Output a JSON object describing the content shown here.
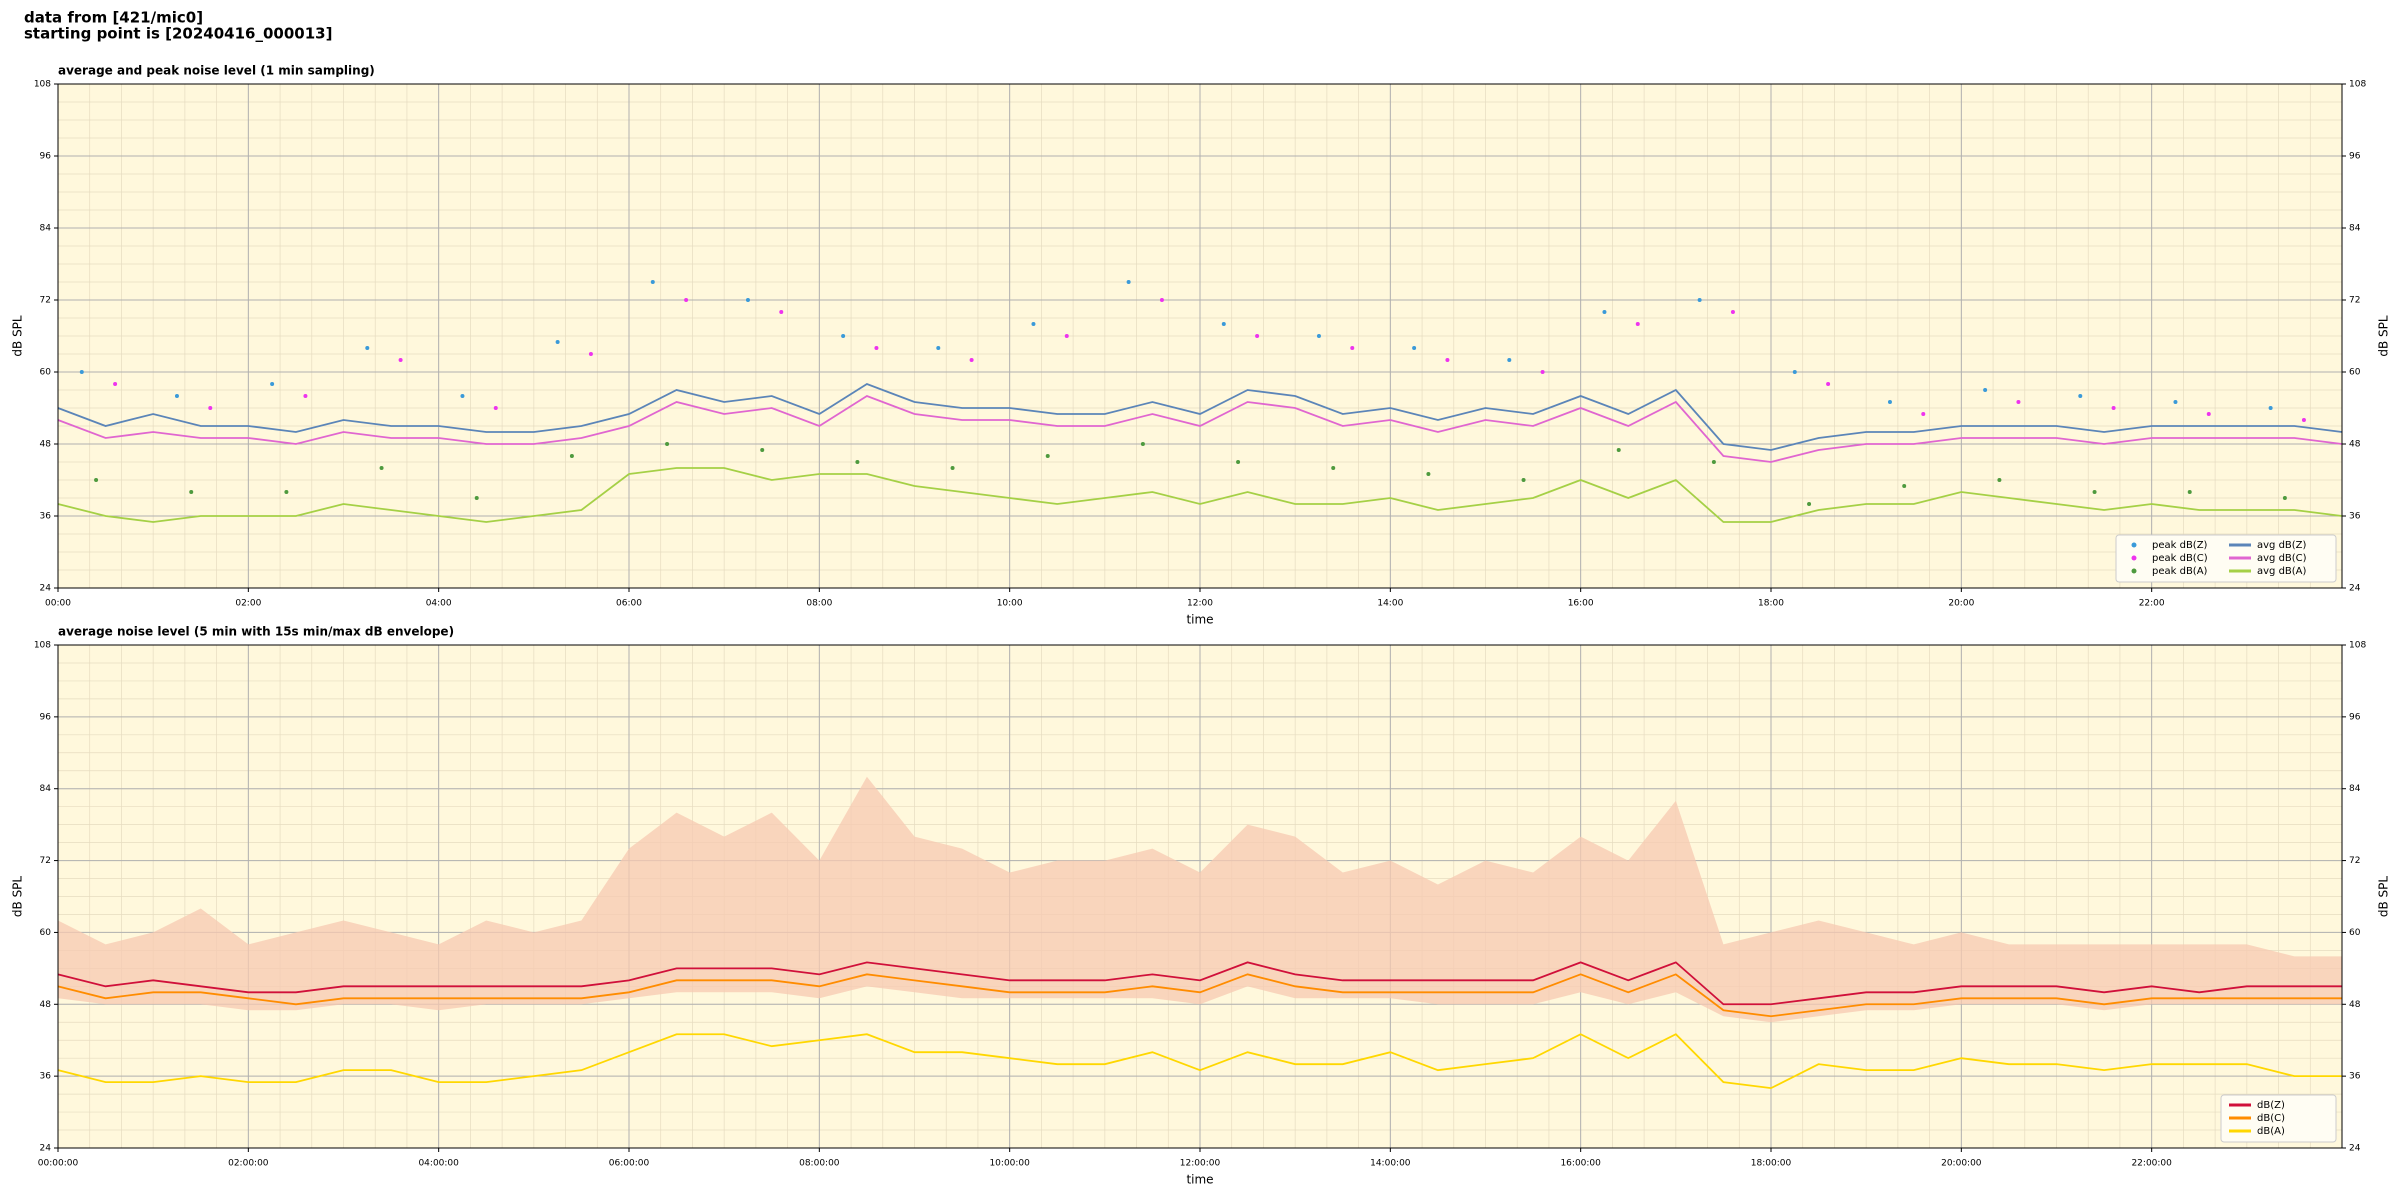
{
  "header": {
    "line1": "data from [421/mic0]",
    "line2": "starting point is [20240416_000013]"
  },
  "chart_data": [
    {
      "type": "line",
      "title": "average and peak noise level (1 min sampling)",
      "xlabel": "time",
      "ylabel": "dB SPL",
      "background": "#fff8dc",
      "grid": true,
      "legend": "lower right",
      "legend_columns": 2,
      "xlim": [
        0,
        24
      ],
      "ylim": [
        24,
        108
      ],
      "yticks": [
        24,
        36,
        48,
        60,
        72,
        84,
        96,
        108
      ],
      "xticks": [
        {
          "value": 0,
          "label": "00:00"
        },
        {
          "value": 2,
          "label": "02:00"
        },
        {
          "value": 4,
          "label": "04:00"
        },
        {
          "value": 6,
          "label": "06:00"
        },
        {
          "value": 8,
          "label": "08:00"
        },
        {
          "value": 10,
          "label": "10:00"
        },
        {
          "value": 12,
          "label": "12:00"
        },
        {
          "value": 14,
          "label": "14:00"
        },
        {
          "value": 16,
          "label": "16:00"
        },
        {
          "value": 18,
          "label": "18:00"
        },
        {
          "value": 20,
          "label": "20:00"
        },
        {
          "value": 22,
          "label": "22:00"
        }
      ],
      "x": [
        0,
        0.5,
        1,
        1.5,
        2,
        2.5,
        3,
        3.5,
        4,
        4.5,
        5,
        5.5,
        6,
        6.5,
        7,
        7.5,
        8,
        8.5,
        9,
        9.5,
        10,
        10.5,
        11,
        11.5,
        12,
        12.5,
        13,
        13.5,
        14,
        14.5,
        15,
        15.5,
        16,
        16.5,
        17,
        17.5,
        18,
        18.5,
        19,
        19.5,
        20,
        20.5,
        21,
        21.5,
        22,
        22.5,
        23,
        23.5,
        24
      ],
      "series": [
        {
          "name": "peak dB(Z)",
          "kind": "scatter",
          "color": "#3a9ad9",
          "x": [
            0.25,
            1.25,
            2.25,
            3.25,
            4.25,
            5.25,
            6.25,
            7.25,
            8.25,
            9.25,
            10.25,
            11.25,
            12.25,
            13.25,
            14.25,
            15.25,
            16.25,
            17.25,
            18.25,
            19.25,
            20.25,
            21.25,
            22.25,
            23.25
          ],
          "values": [
            60,
            56,
            58,
            64,
            56,
            65,
            75,
            72,
            66,
            64,
            68,
            75,
            68,
            66,
            64,
            62,
            70,
            72,
            60,
            55,
            57,
            56,
            55,
            54
          ]
        },
        {
          "name": "peak dB(C)",
          "kind": "scatter",
          "color": "#ee33ee",
          "x": [
            0.6,
            1.6,
            2.6,
            3.6,
            4.6,
            5.6,
            6.6,
            7.6,
            8.6,
            9.6,
            10.6,
            11.6,
            12.6,
            13.6,
            14.6,
            15.6,
            16.6,
            17.6,
            18.6,
            19.6,
            20.6,
            21.6,
            22.6,
            23.6
          ],
          "values": [
            58,
            54,
            56,
            62,
            54,
            63,
            72,
            70,
            64,
            62,
            66,
            72,
            66,
            64,
            62,
            60,
            68,
            70,
            58,
            53,
            55,
            54,
            53,
            52
          ]
        },
        {
          "name": "peak dB(A)",
          "kind": "scatter",
          "color": "#4e9a3e",
          "x": [
            0.4,
            1.4,
            2.4,
            3.4,
            4.4,
            5.4,
            6.4,
            7.4,
            8.4,
            9.4,
            10.4,
            11.4,
            12.4,
            13.4,
            14.4,
            15.4,
            16.4,
            17.4,
            18.4,
            19.4,
            20.4,
            21.4,
            22.4,
            23.4
          ],
          "values": [
            42,
            40,
            40,
            44,
            39,
            46,
            48,
            47,
            45,
            44,
            46,
            48,
            45,
            44,
            43,
            42,
            47,
            45,
            38,
            41,
            42,
            40,
            40,
            39
          ]
        },
        {
          "name": "avg dB(Z)",
          "kind": "line",
          "color": "#5b85b8",
          "values": [
            54,
            51,
            53,
            51,
            51,
            50,
            52,
            51,
            51,
            50,
            50,
            51,
            53,
            57,
            55,
            56,
            53,
            58,
            55,
            54,
            54,
            53,
            53,
            55,
            53,
            57,
            56,
            53,
            54,
            52,
            54,
            53,
            56,
            53,
            57,
            48,
            47,
            49,
            50,
            50,
            51,
            51,
            51,
            50,
            51,
            51,
            51,
            51,
            50
          ]
        },
        {
          "name": "avg dB(C)",
          "kind": "line",
          "color": "#e066d0",
          "values": [
            52,
            49,
            50,
            49,
            49,
            48,
            50,
            49,
            49,
            48,
            48,
            49,
            51,
            55,
            53,
            54,
            51,
            56,
            53,
            52,
            52,
            51,
            51,
            53,
            51,
            55,
            54,
            51,
            52,
            50,
            52,
            51,
            54,
            51,
            55,
            46,
            45,
            47,
            48,
            48,
            49,
            49,
            49,
            48,
            49,
            49,
            49,
            49,
            48
          ]
        },
        {
          "name": "avg dB(A)",
          "kind": "line",
          "color": "#a5d046",
          "values": [
            38,
            36,
            35,
            36,
            36,
            36,
            38,
            37,
            36,
            35,
            36,
            37,
            43,
            44,
            44,
            42,
            43,
            43,
            41,
            40,
            39,
            38,
            39,
            40,
            38,
            40,
            38,
            38,
            39,
            37,
            38,
            39,
            42,
            39,
            42,
            35,
            35,
            37,
            38,
            38,
            40,
            39,
            38,
            37,
            38,
            37,
            37,
            37,
            36
          ]
        }
      ]
    },
    {
      "type": "line",
      "title": "average noise level (5 min with 15s min/max dB envelope)",
      "xlabel": "time",
      "ylabel": "dB SPL",
      "background": "#fff8dc",
      "grid": true,
      "legend": "lower right",
      "legend_columns": 1,
      "xlim": [
        0,
        24
      ],
      "ylim": [
        24,
        108
      ],
      "yticks": [
        24,
        36,
        48,
        60,
        72,
        84,
        96,
        108
      ],
      "xticks": [
        {
          "value": 0,
          "label": "00:00:00"
        },
        {
          "value": 2,
          "label": "02:00:00"
        },
        {
          "value": 4,
          "label": "04:00:00"
        },
        {
          "value": 6,
          "label": "06:00:00"
        },
        {
          "value": 8,
          "label": "08:00:00"
        },
        {
          "value": 10,
          "label": "10:00:00"
        },
        {
          "value": 12,
          "label": "12:00:00"
        },
        {
          "value": 14,
          "label": "14:00:00"
        },
        {
          "value": 16,
          "label": "16:00:00"
        },
        {
          "value": 18,
          "label": "18:00:00"
        },
        {
          "value": 20,
          "label": "20:00:00"
        },
        {
          "value": 22,
          "label": "22:00:00"
        }
      ],
      "x": [
        0,
        0.5,
        1,
        1.5,
        2,
        2.5,
        3,
        3.5,
        4,
        4.5,
        5,
        5.5,
        6,
        6.5,
        7,
        7.5,
        8,
        8.5,
        9,
        9.5,
        10,
        10.5,
        11,
        11.5,
        12,
        12.5,
        13,
        13.5,
        14,
        14.5,
        15,
        15.5,
        16,
        16.5,
        17,
        17.5,
        18,
        18.5,
        19,
        19.5,
        20,
        20.5,
        21,
        21.5,
        22,
        22.5,
        23,
        23.5,
        24
      ],
      "envelope": {
        "color": "#f7c9b2",
        "max": [
          62,
          58,
          60,
          64,
          58,
          60,
          62,
          60,
          58,
          62,
          60,
          62,
          74,
          80,
          76,
          80,
          72,
          86,
          76,
          74,
          70,
          72,
          72,
          74,
          70,
          78,
          76,
          70,
          72,
          68,
          72,
          70,
          76,
          72,
          82,
          58,
          60,
          62,
          60,
          58,
          60,
          58,
          58,
          58,
          58,
          58,
          58,
          56,
          56
        ],
        "min": [
          49,
          48,
          48,
          48,
          47,
          47,
          48,
          48,
          47,
          48,
          48,
          48,
          49,
          50,
          50,
          50,
          49,
          51,
          50,
          49,
          49,
          49,
          49,
          49,
          48,
          51,
          49,
          49,
          49,
          48,
          48,
          48,
          50,
          48,
          50,
          46,
          45,
          46,
          47,
          47,
          48,
          48,
          48,
          47,
          48,
          48,
          48,
          48,
          48
        ]
      },
      "series": [
        {
          "name": "dB(Z)",
          "kind": "line",
          "color": "#d0103a",
          "values": [
            53,
            51,
            52,
            51,
            50,
            50,
            51,
            51,
            51,
            51,
            51,
            51,
            52,
            54,
            54,
            54,
            53,
            55,
            54,
            53,
            52,
            52,
            52,
            53,
            52,
            55,
            53,
            52,
            52,
            52,
            52,
            52,
            55,
            52,
            55,
            48,
            48,
            49,
            50,
            50,
            51,
            51,
            51,
            50,
            51,
            50,
            51,
            51,
            51
          ]
        },
        {
          "name": "dB(C)",
          "kind": "line",
          "color": "#ff8c00",
          "values": [
            51,
            49,
            50,
            50,
            49,
            48,
            49,
            49,
            49,
            49,
            49,
            49,
            50,
            52,
            52,
            52,
            51,
            53,
            52,
            51,
            50,
            50,
            50,
            51,
            50,
            53,
            51,
            50,
            50,
            50,
            50,
            50,
            53,
            50,
            53,
            47,
            46,
            47,
            48,
            48,
            49,
            49,
            49,
            48,
            49,
            49,
            49,
            49,
            49
          ]
        },
        {
          "name": "dB(A)",
          "kind": "line",
          "color": "#ffd700",
          "values": [
            37,
            35,
            35,
            36,
            35,
            35,
            37,
            37,
            35,
            35,
            36,
            37,
            40,
            43,
            43,
            41,
            42,
            43,
            40,
            40,
            39,
            38,
            38,
            40,
            37,
            40,
            38,
            38,
            40,
            37,
            38,
            39,
            43,
            39,
            43,
            35,
            34,
            38,
            37,
            37,
            39,
            38,
            38,
            37,
            38,
            38,
            38,
            36,
            36
          ]
        }
      ]
    }
  ]
}
